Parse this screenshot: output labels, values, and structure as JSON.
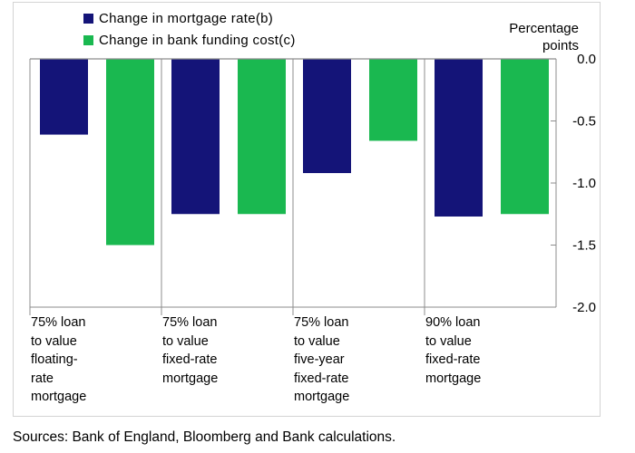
{
  "chart_data": {
    "type": "bar",
    "categories": [
      "75% loan\nto value\nfloating-\nrate\nmortgage",
      "75% loan\nto value\nfixed-rate\nmortgage",
      "75% loan\nto value\nfive-year\nfixed-rate\nmortgage",
      "90% loan\nto value\nfixed-rate\nmortgage"
    ],
    "series": [
      {
        "name": "Change in mortgage rate(b)",
        "values": [
          -0.61,
          -1.25,
          -0.92,
          -1.27
        ],
        "color": "#141478"
      },
      {
        "name": "Change in bank funding cost(c)",
        "values": [
          -1.5,
          -1.25,
          -0.66,
          -1.25
        ],
        "color": "#1ab850"
      }
    ],
    "ylabel": "Percentage\npoints",
    "ylim": [
      -2.0,
      0.0
    ],
    "yticks": [
      "0.0",
      "-0.5",
      "-1.0",
      "-1.5",
      "-2.0"
    ],
    "ytick_values": [
      0.0,
      -0.5,
      -1.0,
      -1.5,
      -2.0
    ],
    "legend_position": "top-left",
    "axis_position": "right",
    "grid": false
  },
  "footer": "Sources:  Bank of England, Bloomberg and Bank calculations."
}
